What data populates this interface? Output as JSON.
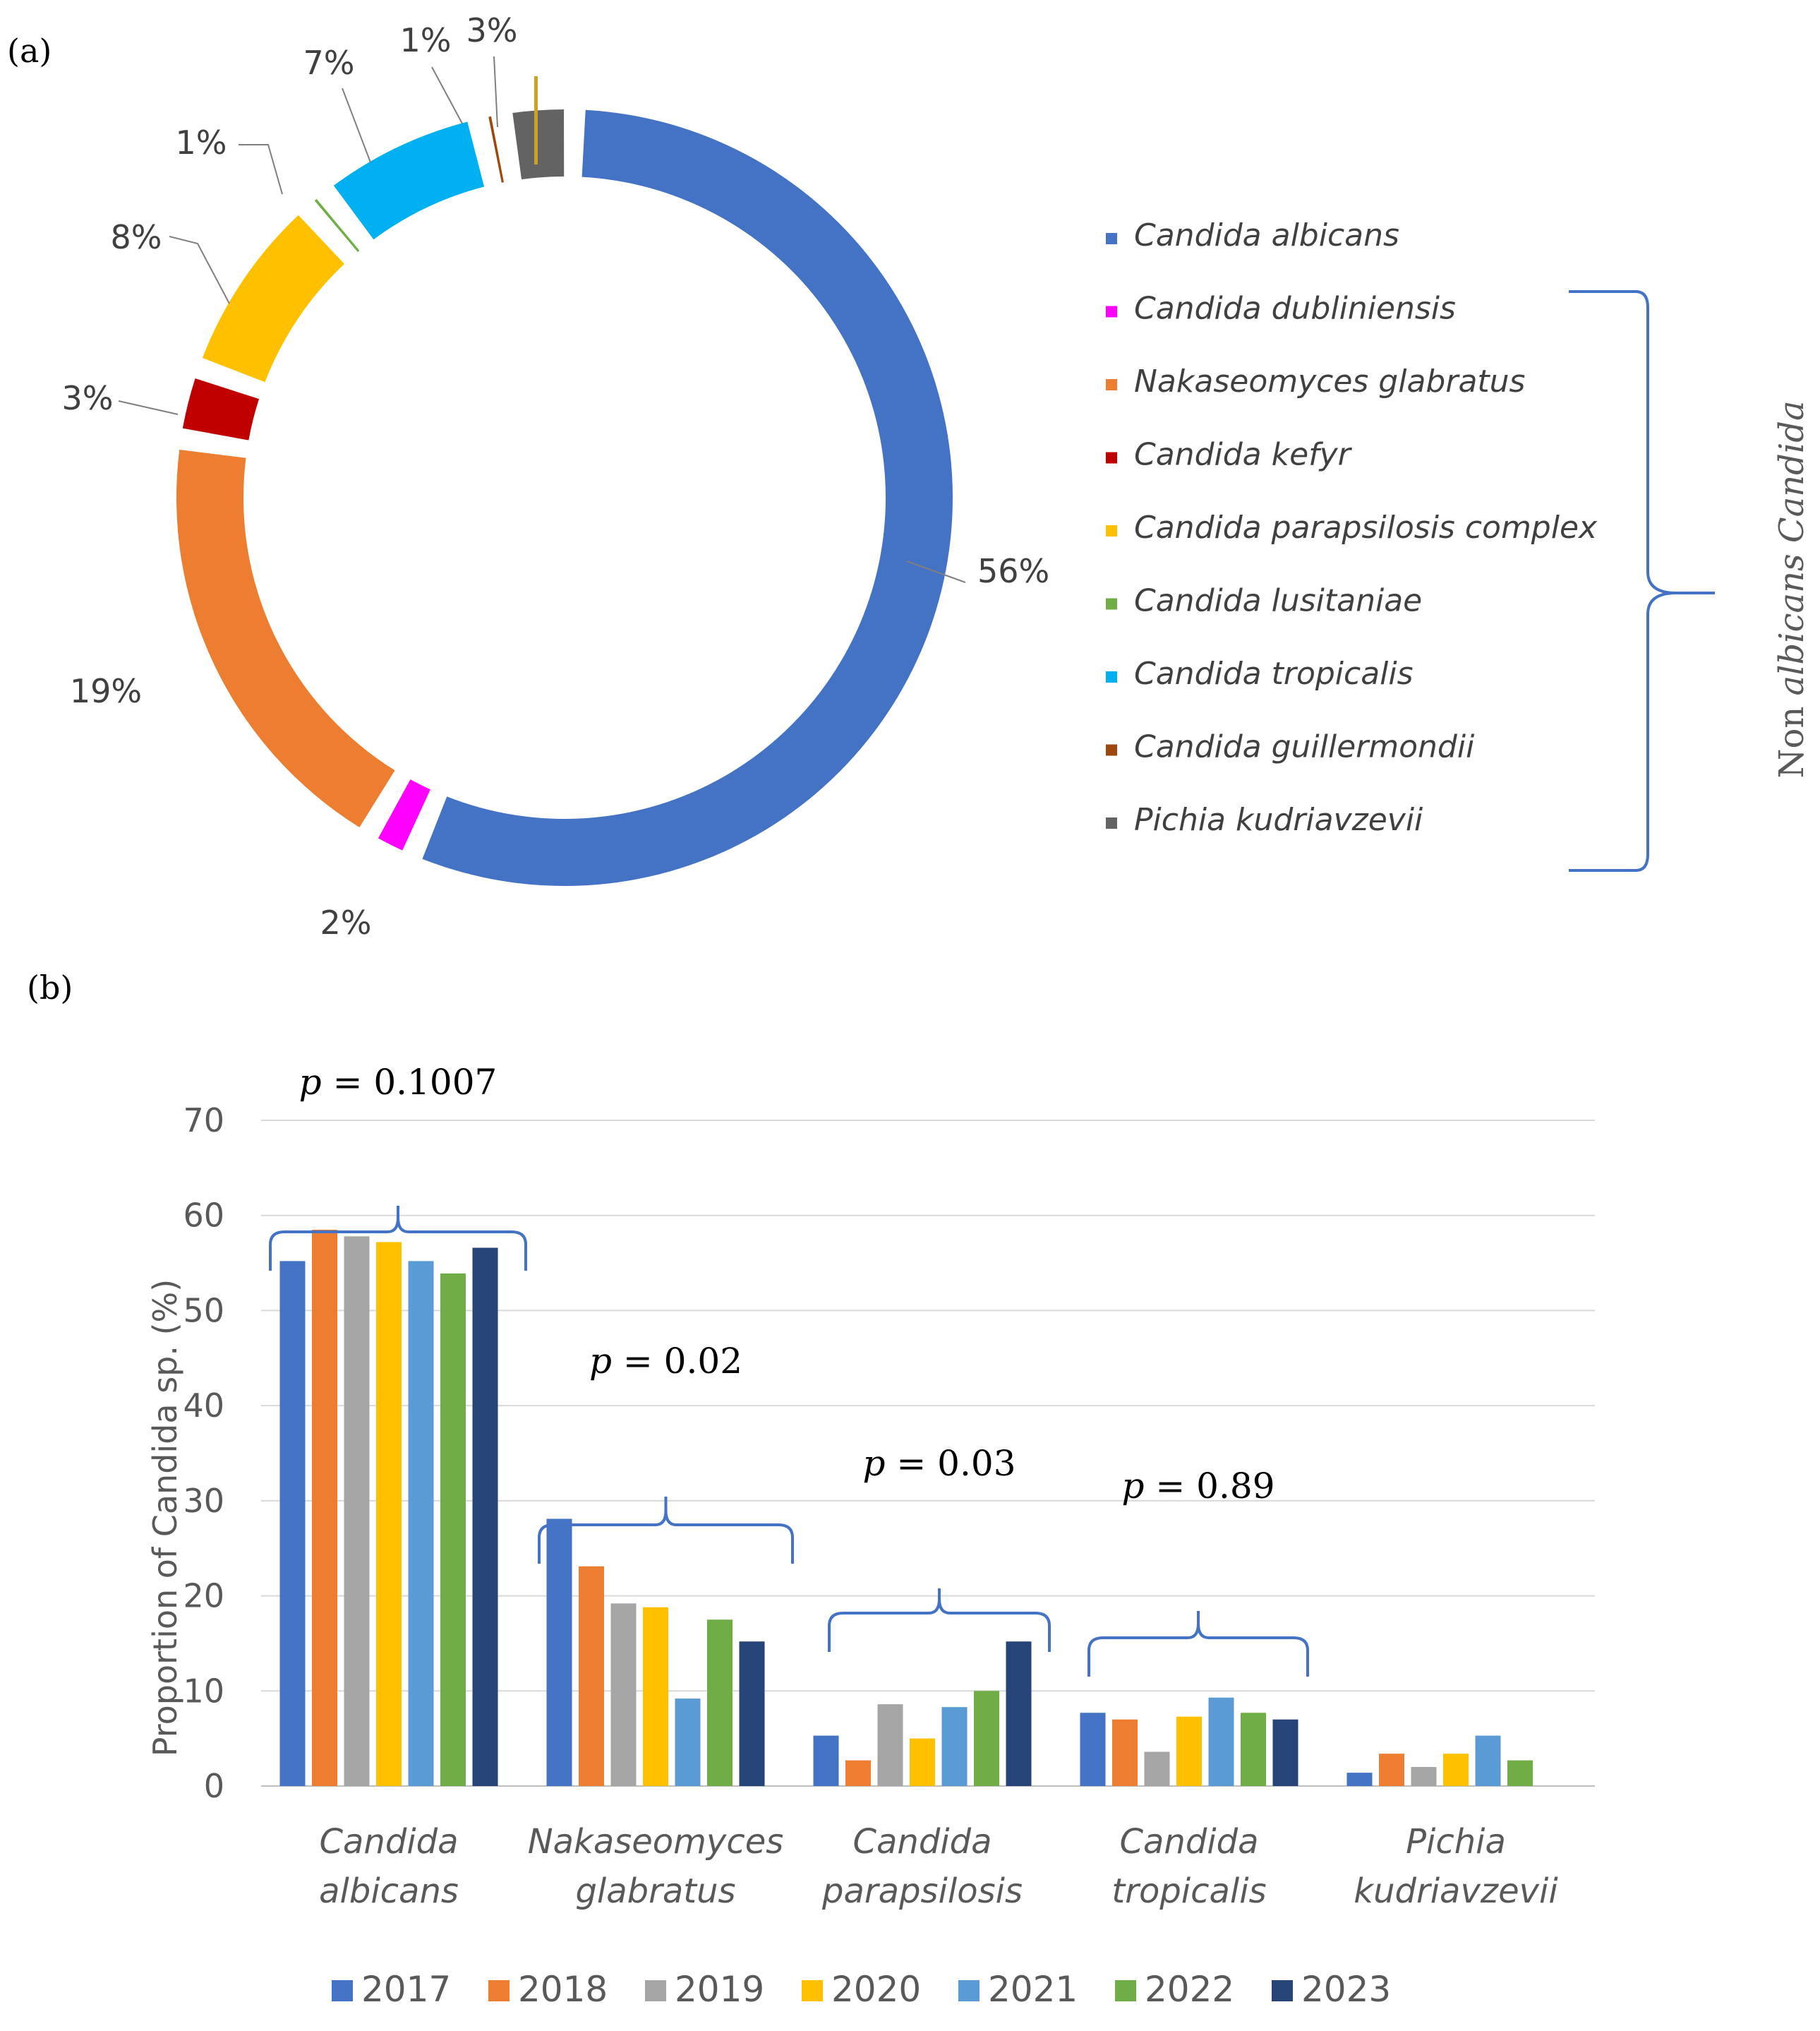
{
  "panel_labels": {
    "a": "(a)",
    "b": "(b)"
  },
  "chart_data": [
    {
      "type": "pie",
      "subtype": "donut",
      "panel": "(a)",
      "slices": [
        {
          "label": "Candida albicans",
          "value": 56,
          "display": "56%",
          "color": "#4472C4"
        },
        {
          "label": "Candida dubliniensis",
          "value": 2,
          "display": "2%",
          "color": "#FF00FF"
        },
        {
          "label": "Nakaseomyces glabratus",
          "value": 19,
          "display": "19%",
          "color": "#ED7D31"
        },
        {
          "label": "Candida kefyr",
          "value": 3,
          "display": "3%",
          "color": "#C00000"
        },
        {
          "label": "Candida parapsilosis complex",
          "value": 8,
          "display": "8%",
          "color": "#FFC000"
        },
        {
          "label": "Candida lusitaniae",
          "value": 1,
          "display": "1%",
          "color": "#70AD47"
        },
        {
          "label": "Candida tropicalis",
          "value": 7,
          "display": "7%",
          "color": "#00B0F0"
        },
        {
          "label": "Candida guillermondii",
          "value": 1,
          "display": "1%",
          "color": "#9E480E"
        },
        {
          "label": "Pichia kudriavzevii",
          "value": 3,
          "display": "3%",
          "color": "#636363"
        }
      ],
      "bracket_label": {
        "prefix": "Non ",
        "italic": "albicans Candida"
      },
      "legend_position": "right"
    },
    {
      "type": "bar",
      "panel": "(b)",
      "ylabel": "Proportion of Candida sp. (%)",
      "xlabel": "",
      "ylim": [
        0,
        70
      ],
      "yticks": [
        0,
        10,
        20,
        30,
        40,
        50,
        60,
        70
      ],
      "grid": true,
      "legend_position": "bottom",
      "categories": [
        [
          "Candida",
          "albicans"
        ],
        [
          "Nakaseomyces",
          "glabratus"
        ],
        [
          "Candida",
          "parapsilosis"
        ],
        [
          "Candida",
          "tropicalis"
        ],
        [
          "Pichia",
          "kudriavzevii"
        ]
      ],
      "series": [
        {
          "name": "2017",
          "color": "#4472C4",
          "values": [
            55.2,
            28.1,
            5.3,
            7.7,
            1.4
          ]
        },
        {
          "name": "2018",
          "color": "#ED7D31",
          "values": [
            58.5,
            23.1,
            2.7,
            7.0,
            3.4
          ]
        },
        {
          "name": "2019",
          "color": "#A5A5A5",
          "values": [
            57.8,
            19.2,
            8.6,
            3.6,
            2.0
          ]
        },
        {
          "name": "2020",
          "color": "#FFC000",
          "values": [
            57.2,
            18.8,
            5.0,
            7.3,
            3.4
          ]
        },
        {
          "name": "2021",
          "color": "#5B9BD5",
          "values": [
            55.2,
            9.2,
            8.3,
            9.3,
            5.3
          ]
        },
        {
          "name": "2022",
          "color": "#70AD47",
          "values": [
            53.9,
            17.5,
            10.0,
            7.7,
            2.7
          ]
        },
        {
          "name": "2023",
          "color": "#264478",
          "values": [
            56.6,
            15.2,
            15.2,
            7.0,
            null
          ]
        }
      ],
      "annotations": [
        {
          "category": 0,
          "p_symbol": "p",
          "text": " = 0.1007"
        },
        {
          "category": 1,
          "p_symbol": "p",
          "text": " = 0.02"
        },
        {
          "category": 2,
          "p_symbol": "p",
          "text": " = 0.03"
        },
        {
          "category": 3,
          "p_symbol": "p",
          "text": " = 0.89"
        }
      ]
    }
  ]
}
